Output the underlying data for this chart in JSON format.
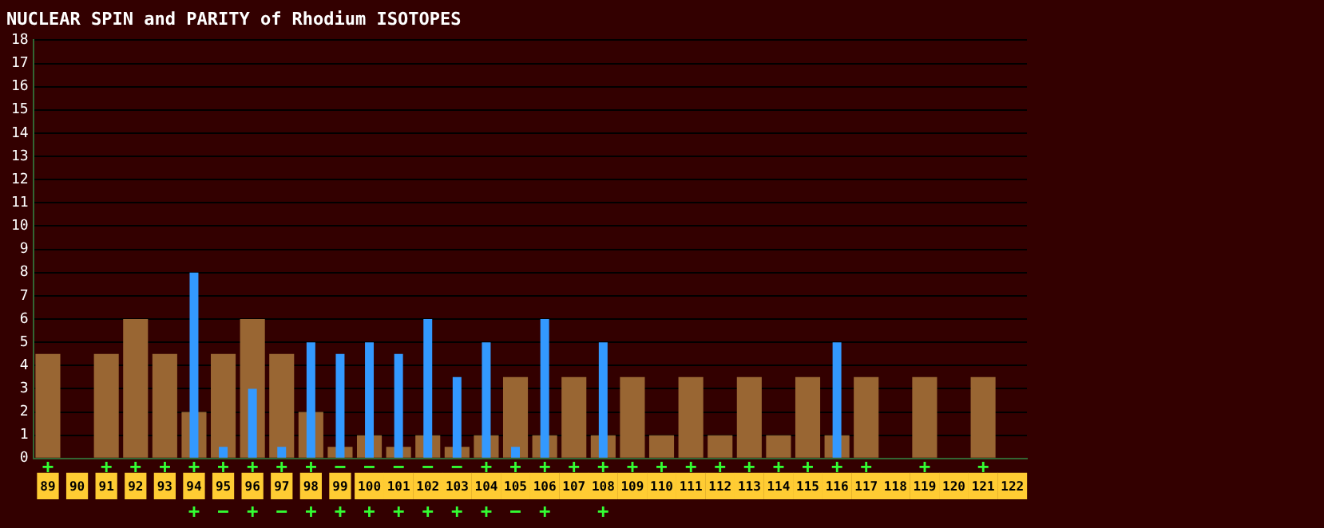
{
  "chart_data": {
    "type": "bar",
    "title": "NUCLEAR SPIN and PARITY of Rhodium ISOTOPES",
    "categories": [
      "89",
      "90",
      "91",
      "92",
      "93",
      "94",
      "95",
      "96",
      "97",
      "98",
      "99",
      "100",
      "101",
      "102",
      "103",
      "104",
      "105",
      "106",
      "107",
      "108",
      "109",
      "110",
      "111",
      "112",
      "113",
      "114",
      "115",
      "116",
      "117",
      "118",
      "119",
      "120",
      "121",
      "122"
    ],
    "series": [
      {
        "color": "#996633",
        "values": [
          4.5,
          null,
          4.5,
          6,
          4.5,
          2,
          4.5,
          6,
          4.5,
          2,
          0.5,
          1,
          0.5,
          1,
          0.5,
          1,
          3.5,
          1,
          3.5,
          1,
          3.5,
          1,
          3.5,
          1,
          3.5,
          1,
          3.5,
          1,
          3.5,
          null,
          3.5,
          null,
          3.5,
          null
        ],
        "value_labels": [
          "+",
          null,
          "+",
          "+",
          "+",
          "+",
          "+",
          "+",
          "+",
          "+",
          "−",
          "−",
          "−",
          "−",
          "−",
          "+",
          "+",
          "+",
          "+",
          "+",
          "+",
          "+",
          "+",
          "+",
          "+",
          "+",
          "+",
          "+",
          "+",
          null,
          "+",
          null,
          "+",
          null
        ]
      },
      {
        "color": "#3399ff",
        "values": [
          null,
          null,
          null,
          null,
          null,
          8,
          0.5,
          3,
          0.5,
          5,
          4.5,
          5,
          4.5,
          6,
          3.5,
          5,
          0.5,
          6,
          null,
          5,
          null,
          null,
          null,
          null,
          null,
          null,
          null,
          5,
          null,
          null,
          null,
          null,
          null,
          null
        ],
        "value_labels": [
          null,
          null,
          null,
          null,
          null,
          "+",
          "−",
          "+",
          "−",
          "+",
          "+",
          "+",
          "+",
          "+",
          "+",
          "+",
          "−",
          "+",
          null,
          "+",
          null,
          null,
          null,
          null,
          null,
          null,
          null,
          null,
          null,
          null,
          null,
          null,
          null,
          null
        ]
      }
    ],
    "ylim": [
      0,
      18
    ],
    "yticks": [
      0,
      1,
      2,
      3,
      4,
      5,
      6,
      7,
      8,
      9,
      10,
      11,
      12,
      13,
      14,
      15,
      16,
      17,
      18
    ],
    "grid": "y",
    "legend": false
  }
}
